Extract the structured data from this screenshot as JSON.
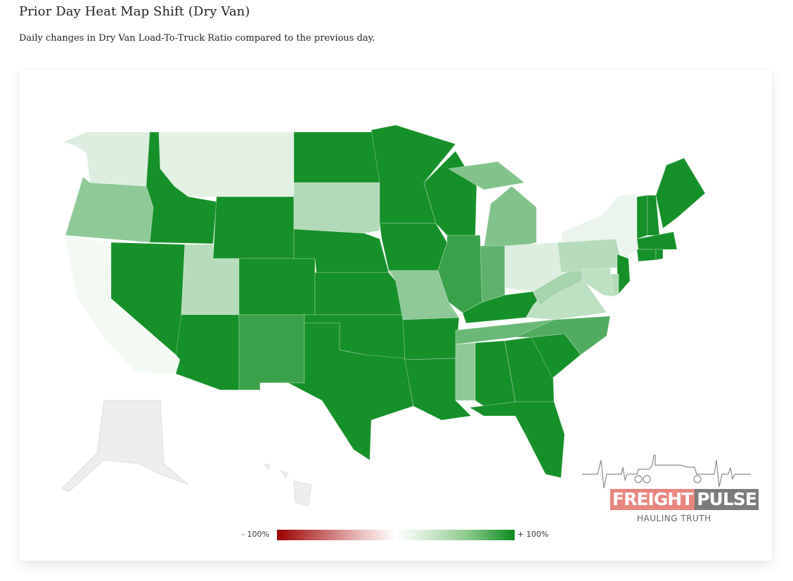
{
  "page": {
    "title": "Prior Day Heat Map Shift (Dry Van)",
    "subtitle": "Daily changes in Dry Van Load-To-Truck Ratio compared to the previous day."
  },
  "legend": {
    "min_label": "- 100%",
    "max_label": "+ 100%",
    "colors": [
      "#9b0000",
      "#ffffff",
      "#0a8a1e"
    ]
  },
  "logo": {
    "word_part_1": "FREIGHT",
    "word_part_2": "PULSE",
    "tagline": "HAULING TRUTH"
  },
  "map_data": {
    "type": "choropleth",
    "metric": "Daily change in Dry Van Load-To-Truck Ratio",
    "scale": [
      -100,
      100
    ],
    "states": {
      "WA": 0.12,
      "OR": 0.45,
      "CA": 0.03,
      "NV": 0.95,
      "ID": 0.95,
      "MT": 0.1,
      "WY": 0.95,
      "UT": 0.28,
      "AZ": 0.95,
      "CO": 0.95,
      "NM": 0.8,
      "ND": 0.95,
      "SD": 0.3,
      "NE": 0.95,
      "KS": 0.95,
      "OK": 0.95,
      "TX": 0.95,
      "MN": 0.95,
      "IA": 0.95,
      "MO": 0.45,
      "AR": 0.95,
      "LA": 0.95,
      "WI": 0.95,
      "IL": 0.8,
      "MI": 0.5,
      "IN": 0.65,
      "OH": 0.12,
      "KY": 0.95,
      "TN": 0.6,
      "MS": 0.45,
      "AL": 0.95,
      "GA": 0.95,
      "FL": 0.95,
      "SC": 0.95,
      "NC": 0.7,
      "VA": 0.25,
      "WV": 0.35,
      "PA": 0.28,
      "NY": 0.06,
      "NJ": 0.95,
      "DE": 0.3,
      "MD": 0.25,
      "VT": 0.95,
      "NH": 0.95,
      "ME": 0.95,
      "MA": 0.95,
      "CT": 0.95,
      "RI": 0.95,
      "AK": null,
      "HI": null
    }
  }
}
